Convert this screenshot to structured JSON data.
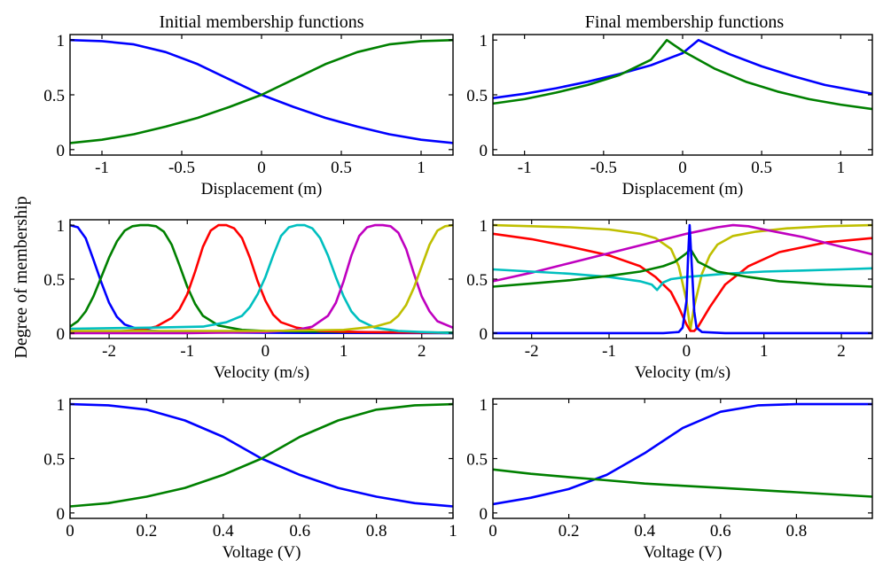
{
  "figure": {
    "ylabel": "Degree of membership",
    "columns": [
      "Initial membership functions",
      "Final membership functions"
    ]
  },
  "colors": {
    "blue": "#0000ff",
    "green": "#008000",
    "red": "#ff0000",
    "cyan": "#00bfbf",
    "magenta": "#bf00bf",
    "olive": "#bfbf00"
  },
  "chart_data": [
    {
      "id": "initial-displacement",
      "type": "line",
      "xlabel": "Displacement (m)",
      "xlim": [
        -1.2,
        1.2
      ],
      "ylim": [
        -0.05,
        1.05
      ],
      "xticks": [
        -1,
        -0.5,
        0,
        0.5,
        1
      ],
      "xtick_labels": [
        "-1",
        "-0.5",
        "0",
        "0.5",
        "1"
      ],
      "yticks": [
        0,
        0.5,
        1
      ],
      "ytick_labels": [
        "0",
        "0.5",
        "1"
      ],
      "series": [
        {
          "color": "blue",
          "x": [
            -1.2,
            -1.0,
            -0.8,
            -0.6,
            -0.4,
            -0.2,
            0,
            0.2,
            0.4,
            0.6,
            0.8,
            1.0,
            1.2
          ],
          "y": [
            1.0,
            0.99,
            0.96,
            0.89,
            0.78,
            0.64,
            0.5,
            0.39,
            0.29,
            0.21,
            0.14,
            0.09,
            0.06
          ]
        },
        {
          "color": "green",
          "x": [
            -1.2,
            -1.0,
            -0.8,
            -0.6,
            -0.4,
            -0.2,
            0,
            0.2,
            0.4,
            0.6,
            0.8,
            1.0,
            1.2
          ],
          "y": [
            0.06,
            0.09,
            0.14,
            0.21,
            0.29,
            0.39,
            0.5,
            0.64,
            0.78,
            0.89,
            0.96,
            0.99,
            1.0
          ]
        }
      ]
    },
    {
      "id": "final-displacement",
      "type": "line",
      "xlabel": "Displacement (m)",
      "xlim": [
        -1.2,
        1.2
      ],
      "ylim": [
        -0.05,
        1.05
      ],
      "xticks": [
        -1,
        -0.5,
        0,
        0.5,
        1
      ],
      "xtick_labels": [
        "-1",
        "-0.5",
        "0",
        "0.5",
        "1"
      ],
      "yticks": [
        0,
        0.5,
        1
      ],
      "ytick_labels": [
        "0",
        "0.5",
        "1"
      ],
      "series": [
        {
          "color": "blue",
          "x": [
            -1.2,
            -1.0,
            -0.8,
            -0.6,
            -0.4,
            -0.2,
            0,
            0.1,
            0.3,
            0.5,
            0.7,
            0.9,
            1.2
          ],
          "y": [
            0.47,
            0.51,
            0.56,
            0.62,
            0.69,
            0.77,
            0.88,
            1.0,
            0.87,
            0.76,
            0.67,
            0.59,
            0.51
          ]
        },
        {
          "color": "green",
          "x": [
            -1.2,
            -1.0,
            -0.8,
            -0.6,
            -0.4,
            -0.2,
            -0.1,
            0,
            0.2,
            0.4,
            0.6,
            0.8,
            1.0,
            1.2
          ],
          "y": [
            0.42,
            0.46,
            0.52,
            0.59,
            0.68,
            0.82,
            1.0,
            0.9,
            0.74,
            0.62,
            0.53,
            0.46,
            0.41,
            0.37
          ]
        }
      ]
    },
    {
      "id": "initial-velocity",
      "type": "line",
      "xlabel": "Velocity (m/s)",
      "xlim": [
        -2.5,
        2.4
      ],
      "ylim": [
        -0.05,
        1.05
      ],
      "xticks": [
        -2,
        -1,
        0,
        1,
        2
      ],
      "xtick_labels": [
        "-2",
        "-1",
        "0",
        "1",
        "2"
      ],
      "yticks": [
        0,
        0.5,
        1
      ],
      "ytick_labels": [
        "0",
        "0.5",
        "1"
      ],
      "series": [
        {
          "color": "blue",
          "x": [
            -2.5,
            -2.4,
            -2.3,
            -2.2,
            -2.1,
            -2.0,
            -1.9,
            -1.8,
            -1.6,
            -1.2,
            -0.5,
            0.5,
            2.4
          ],
          "y": [
            1.0,
            0.98,
            0.88,
            0.68,
            0.47,
            0.28,
            0.15,
            0.08,
            0.03,
            0.01,
            0.005,
            0.002,
            0.0
          ]
        },
        {
          "color": "green",
          "x": [
            -2.5,
            -2.4,
            -2.3,
            -2.2,
            -2.1,
            -2.0,
            -1.9,
            -1.8,
            -1.7,
            -1.6,
            -1.5,
            -1.4,
            -1.3,
            -1.2,
            -1.1,
            -1.0,
            -0.9,
            -0.8,
            -0.6,
            -0.3,
            0,
            1.0,
            2.4
          ],
          "y": [
            0.06,
            0.11,
            0.2,
            0.34,
            0.52,
            0.7,
            0.85,
            0.95,
            0.99,
            1.0,
            1.0,
            0.99,
            0.94,
            0.82,
            0.63,
            0.43,
            0.27,
            0.16,
            0.07,
            0.03,
            0.02,
            0.01,
            0.005
          ]
        },
        {
          "color": "red",
          "x": [
            -2.5,
            -2.0,
            -1.6,
            -1.4,
            -1.2,
            -1.1,
            -1.0,
            -0.9,
            -0.8,
            -0.7,
            -0.6,
            -0.5,
            -0.4,
            -0.3,
            -0.2,
            -0.1,
            0,
            0.1,
            0.2,
            0.4,
            0.7,
            1.2,
            2.4
          ],
          "y": [
            0.0,
            0.01,
            0.03,
            0.06,
            0.14,
            0.22,
            0.36,
            0.57,
            0.8,
            0.95,
            1.0,
            1.0,
            0.97,
            0.88,
            0.7,
            0.48,
            0.3,
            0.17,
            0.1,
            0.05,
            0.02,
            0.01,
            0.0
          ]
        },
        {
          "color": "cyan",
          "x": [
            -2.5,
            -1.5,
            -0.8,
            -0.5,
            -0.3,
            -0.2,
            -0.1,
            0,
            0.1,
            0.2,
            0.3,
            0.4,
            0.5,
            0.6,
            0.7,
            0.8,
            0.9,
            1.0,
            1.1,
            1.2,
            1.4,
            1.7,
            2.0,
            2.4
          ],
          "y": [
            0.04,
            0.05,
            0.06,
            0.1,
            0.16,
            0.24,
            0.36,
            0.52,
            0.72,
            0.9,
            0.98,
            1.0,
            1.0,
            0.97,
            0.88,
            0.72,
            0.52,
            0.34,
            0.2,
            0.12,
            0.05,
            0.02,
            0.01,
            0.0
          ]
        },
        {
          "color": "magenta",
          "x": [
            -2.5,
            -1.0,
            0,
            0.4,
            0.6,
            0.8,
            0.9,
            1.0,
            1.1,
            1.2,
            1.3,
            1.4,
            1.5,
            1.6,
            1.7,
            1.8,
            1.9,
            2.0,
            2.1,
            2.2,
            2.4
          ],
          "y": [
            0.0,
            0.0,
            0.01,
            0.03,
            0.06,
            0.16,
            0.28,
            0.48,
            0.72,
            0.9,
            0.98,
            1.0,
            1.0,
            0.99,
            0.93,
            0.78,
            0.55,
            0.34,
            0.2,
            0.11,
            0.05
          ]
        },
        {
          "color": "olive",
          "x": [
            -2.5,
            -1.0,
            0,
            1.0,
            1.4,
            1.6,
            1.7,
            1.8,
            1.9,
            2.0,
            2.1,
            2.2,
            2.3,
            2.4
          ],
          "y": [
            0.02,
            0.02,
            0.02,
            0.03,
            0.06,
            0.1,
            0.16,
            0.26,
            0.42,
            0.62,
            0.82,
            0.95,
            0.99,
            1.0
          ]
        }
      ]
    },
    {
      "id": "final-velocity",
      "type": "line",
      "xlabel": "Velocity (m/s)",
      "xlim": [
        -2.5,
        2.4
      ],
      "ylim": [
        -0.05,
        1.05
      ],
      "xticks": [
        -2,
        -1,
        0,
        1,
        2
      ],
      "xtick_labels": [
        "-2",
        "-1",
        "0",
        "1",
        "2"
      ],
      "yticks": [
        0,
        0.5,
        1
      ],
      "ytick_labels": [
        "0",
        "0.5",
        "1"
      ],
      "series": [
        {
          "color": "olive",
          "x": [
            -2.5,
            -2.0,
            -1.5,
            -1.0,
            -0.6,
            -0.4,
            -0.2,
            -0.1,
            0,
            0.05,
            0.1,
            0.2,
            0.3,
            0.4,
            0.6,
            0.9,
            1.3,
            1.8,
            2.4
          ],
          "y": [
            1.0,
            0.99,
            0.98,
            0.96,
            0.92,
            0.88,
            0.78,
            0.62,
            0.3,
            0.03,
            0.25,
            0.55,
            0.72,
            0.82,
            0.9,
            0.94,
            0.97,
            0.99,
            1.0
          ]
        },
        {
          "color": "red",
          "x": [
            -2.5,
            -2.0,
            -1.5,
            -1.0,
            -0.6,
            -0.4,
            -0.2,
            -0.1,
            0,
            0.05,
            0.1,
            0.15,
            0.3,
            0.5,
            0.8,
            1.2,
            1.8,
            2.4
          ],
          "y": [
            0.92,
            0.87,
            0.8,
            0.72,
            0.62,
            0.52,
            0.38,
            0.24,
            0.08,
            0.02,
            0.02,
            0.06,
            0.24,
            0.45,
            0.62,
            0.75,
            0.84,
            0.88
          ]
        },
        {
          "color": "magenta",
          "x": [
            -2.5,
            -2.0,
            -1.5,
            -1.0,
            -0.5,
            0,
            0.4,
            0.6,
            0.8,
            1.0,
            1.5,
            2.0,
            2.4
          ],
          "y": [
            0.48,
            0.56,
            0.65,
            0.74,
            0.83,
            0.92,
            0.98,
            1.0,
            0.99,
            0.96,
            0.89,
            0.8,
            0.73
          ]
        },
        {
          "color": "cyan",
          "x": [
            -2.5,
            -2.0,
            -1.5,
            -1.0,
            -0.6,
            -0.45,
            -0.38,
            -0.3,
            -0.2,
            0,
            0.5,
            1.0,
            1.5,
            2.0,
            2.4
          ],
          "y": [
            0.59,
            0.57,
            0.55,
            0.52,
            0.48,
            0.45,
            0.4,
            0.47,
            0.5,
            0.52,
            0.55,
            0.57,
            0.58,
            0.59,
            0.6
          ]
        },
        {
          "color": "green",
          "x": [
            -2.5,
            -2.0,
            -1.5,
            -1.0,
            -0.6,
            -0.3,
            -0.15,
            0,
            0.05,
            0.15,
            0.4,
            0.8,
            1.2,
            1.8,
            2.4
          ],
          "y": [
            0.43,
            0.46,
            0.49,
            0.53,
            0.57,
            0.62,
            0.66,
            0.74,
            0.78,
            0.66,
            0.57,
            0.52,
            0.48,
            0.45,
            0.43
          ]
        },
        {
          "color": "blue",
          "x": [
            -2.5,
            -1.0,
            -0.3,
            -0.1,
            -0.05,
            0,
            0.02,
            0.04,
            0.07,
            0.1,
            0.13,
            0.2,
            0.5,
            1.0,
            2.4
          ],
          "y": [
            0.0,
            0.0,
            0.0,
            0.01,
            0.05,
            0.3,
            0.7,
            1.0,
            0.6,
            0.2,
            0.05,
            0.01,
            0.0,
            0.0,
            0.0
          ]
        }
      ]
    },
    {
      "id": "initial-voltage",
      "type": "line",
      "xlabel": "Voltage (V)",
      "xlim": [
        0,
        1
      ],
      "ylim": [
        -0.05,
        1.05
      ],
      "xticks": [
        0,
        0.2,
        0.4,
        0.6,
        0.8,
        1
      ],
      "xtick_labels": [
        "0",
        "0.2",
        "0.4",
        "0.6",
        "0.8",
        "1"
      ],
      "yticks": [
        0,
        0.5,
        1
      ],
      "ytick_labels": [
        "0",
        "0.5",
        "1"
      ],
      "series": [
        {
          "color": "blue",
          "x": [
            0,
            0.1,
            0.2,
            0.3,
            0.4,
            0.5,
            0.6,
            0.7,
            0.8,
            0.9,
            1.0
          ],
          "y": [
            1.0,
            0.99,
            0.95,
            0.85,
            0.7,
            0.5,
            0.35,
            0.23,
            0.15,
            0.09,
            0.06
          ]
        },
        {
          "color": "green",
          "x": [
            0,
            0.1,
            0.2,
            0.3,
            0.4,
            0.5,
            0.6,
            0.7,
            0.8,
            0.9,
            1.0
          ],
          "y": [
            0.06,
            0.09,
            0.15,
            0.23,
            0.35,
            0.5,
            0.7,
            0.85,
            0.95,
            0.99,
            1.0
          ]
        }
      ]
    },
    {
      "id": "final-voltage",
      "type": "line",
      "xlabel": "Voltage (V)",
      "xlim": [
        0,
        1
      ],
      "ylim": [
        -0.05,
        1.05
      ],
      "xticks": [
        0,
        0.2,
        0.4,
        0.6,
        0.8
      ],
      "xtick_labels": [
        "0",
        "0.2",
        "0.4",
        "0.6",
        "0.8"
      ],
      "yticks": [
        0,
        0.5,
        1
      ],
      "ytick_labels": [
        "0",
        "0.5",
        "1"
      ],
      "series": [
        {
          "color": "blue",
          "x": [
            0,
            0.1,
            0.2,
            0.3,
            0.4,
            0.5,
            0.6,
            0.7,
            0.8,
            0.9,
            1.0
          ],
          "y": [
            0.08,
            0.14,
            0.22,
            0.35,
            0.55,
            0.78,
            0.93,
            0.99,
            1.0,
            1.0,
            1.0
          ]
        },
        {
          "color": "green",
          "x": [
            0,
            0.1,
            0.2,
            0.3,
            0.4,
            0.5,
            0.6,
            0.7,
            0.8,
            0.9,
            1.0
          ],
          "y": [
            0.4,
            0.36,
            0.33,
            0.3,
            0.27,
            0.25,
            0.23,
            0.21,
            0.19,
            0.17,
            0.15
          ]
        }
      ]
    }
  ]
}
